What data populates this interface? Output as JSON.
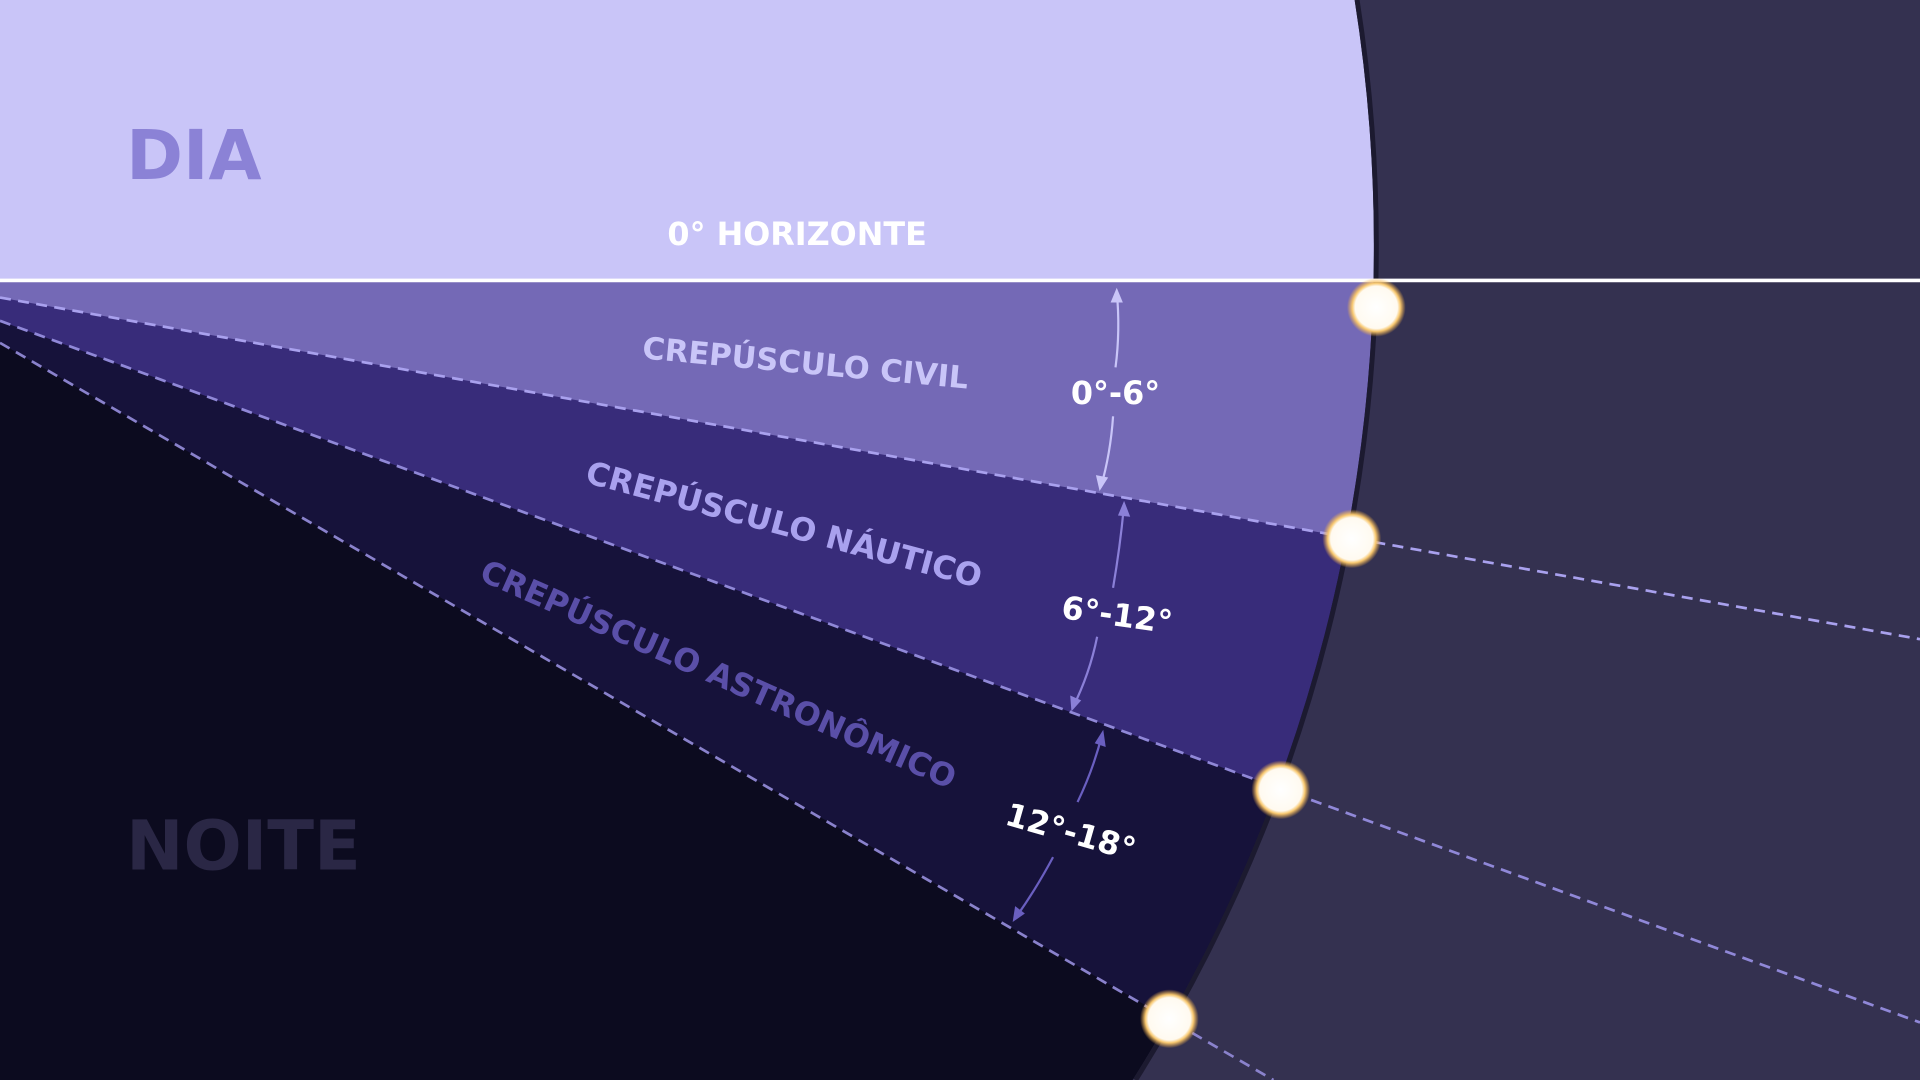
{
  "labels": {
    "day": "DIA",
    "night": "NOITE",
    "horizon": "0° HORIZONTE",
    "civil": "CREPÚSCULO CIVIL",
    "nautical": "CREPÚSCULO NÁUTICO",
    "astronomical": "CREPÚSCULO ASTRONÔMICO",
    "range_civil": "0°-6°",
    "range_nautical": "6°-12°",
    "range_astronomical": "12°-18°"
  },
  "colors": {
    "day": "#c9c5f8",
    "civil": "#7469b6",
    "nautical": "#382c7a",
    "astronomical": "#16123a",
    "night": "#0c0b1f",
    "earth": "#343150",
    "sun": "#ffffff",
    "sun_glow": "#f5b042"
  },
  "icons": {
    "sun": "sun-circle-icon"
  }
}
